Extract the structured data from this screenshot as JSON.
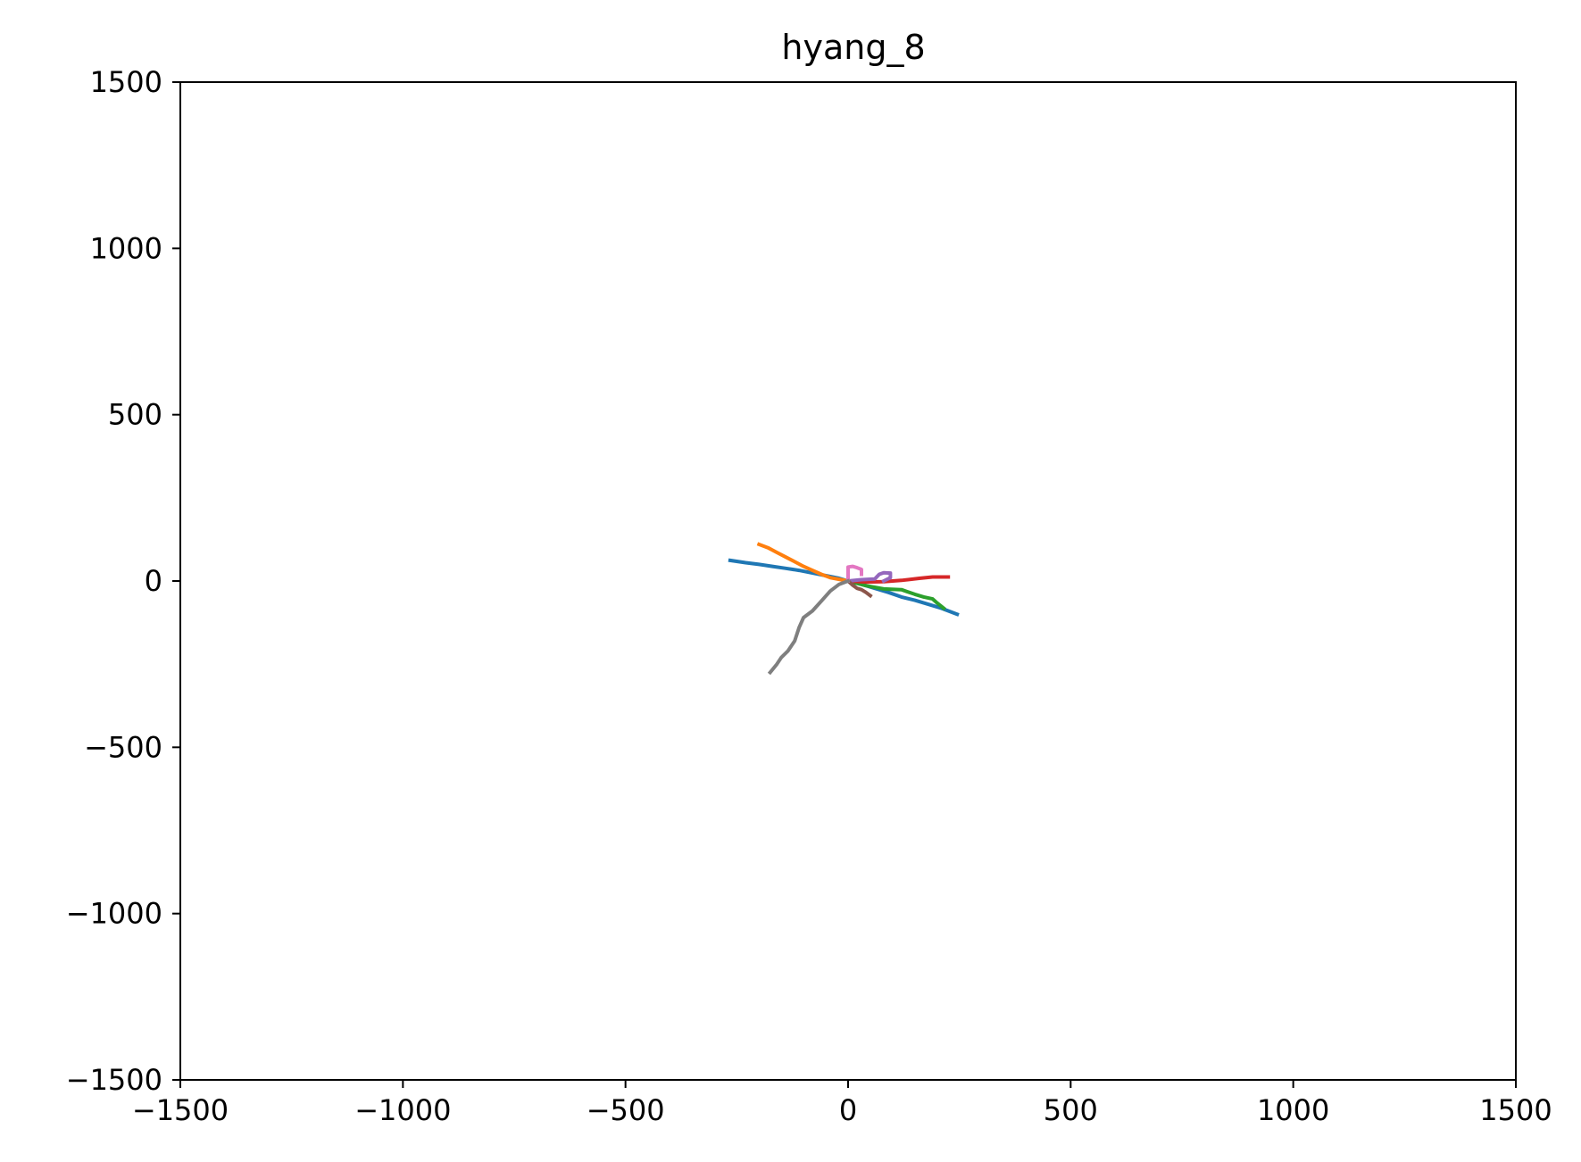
{
  "chart_data": {
    "type": "line",
    "title": "hyang_8",
    "xlabel": "",
    "ylabel": "",
    "xlim": [
      -1500,
      1500
    ],
    "ylim": [
      -1500,
      1500
    ],
    "xticks": [
      -1500,
      -1000,
      -500,
      0,
      500,
      1000,
      1500
    ],
    "yticks": [
      -1500,
      -1000,
      -500,
      0,
      500,
      1000,
      1500
    ],
    "xtick_labels": [
      "−1500",
      "−1000",
      "−500",
      "0",
      "500",
      "1000",
      "1500"
    ],
    "ytick_labels": [
      "−1500",
      "−1000",
      "−500",
      "0",
      "500",
      "1000",
      "1500"
    ],
    "grid": false,
    "legend": false,
    "series": [
      {
        "color": "#1f77b4",
        "x": [
          -265,
          -230,
          -200,
          -170,
          -140,
          -110,
          -80,
          -50,
          -20,
          0,
          30,
          60,
          90,
          120,
          150,
          180,
          210,
          245
        ],
        "y": [
          62,
          55,
          50,
          44,
          38,
          32,
          24,
          16,
          8,
          0,
          -10,
          -22,
          -34,
          -48,
          -58,
          -70,
          -82,
          -100
        ]
      },
      {
        "color": "#ff7f0e",
        "x": [
          -200,
          -180,
          -160,
          -140,
          -120,
          -100,
          -80,
          -60,
          -40,
          -20,
          0
        ],
        "y": [
          110,
          100,
          86,
          72,
          58,
          44,
          32,
          20,
          10,
          5,
          0
        ]
      },
      {
        "color": "#2ca02c",
        "x": [
          0,
          40,
          80,
          120,
          150,
          170,
          190,
          200,
          215
        ],
        "y": [
          0,
          -14,
          -24,
          -26,
          -40,
          -48,
          -54,
          -66,
          -82
        ]
      },
      {
        "color": "#d62728",
        "x": [
          0,
          40,
          80,
          120,
          160,
          190,
          225
        ],
        "y": [
          0,
          -3,
          -2,
          2,
          8,
          12,
          12
        ]
      },
      {
        "color": "#9467bd",
        "x": [
          0,
          30,
          60,
          70,
          80,
          95,
          95,
          80
        ],
        "y": [
          0,
          4,
          6,
          20,
          25,
          24,
          10,
          0
        ]
      },
      {
        "color": "#8c564b",
        "x": [
          0,
          10,
          20,
          30,
          40,
          50
        ],
        "y": [
          0,
          -12,
          -22,
          -26,
          -34,
          -44
        ]
      },
      {
        "color": "#e377c2",
        "x": [
          0,
          0,
          10,
          20,
          30,
          30
        ],
        "y": [
          0,
          42,
          44,
          40,
          35,
          20
        ]
      },
      {
        "color": "#7f7f7f",
        "x": [
          0,
          -20,
          -40,
          -60,
          -80,
          -100,
          -110,
          -120,
          -135,
          -150,
          -160,
          -175
        ],
        "y": [
          0,
          -10,
          -30,
          -60,
          -90,
          -110,
          -140,
          -180,
          -210,
          -230,
          -250,
          -275
        ]
      }
    ]
  }
}
